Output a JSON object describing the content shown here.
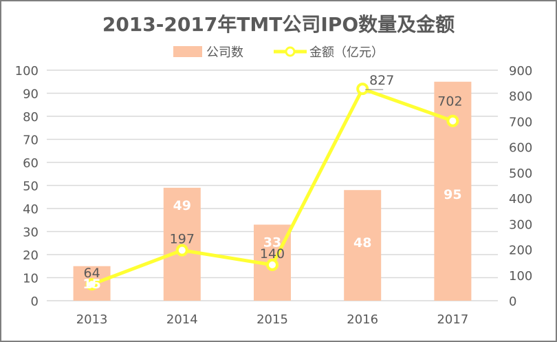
{
  "title": "2013-2017年TMT公司IPO数量及金额",
  "legend": {
    "bar_label": "公司数",
    "line_label": "金额（亿元）"
  },
  "colors": {
    "bar": "#fcc4a4",
    "line": "#ffff33",
    "text": "#595959",
    "grid": "#d9d9d9",
    "border": "#7f7f7f"
  },
  "chart_data": {
    "type": "bar+line",
    "title": "2013-2017年TMT公司IPO数量及金额",
    "categories": [
      "2013",
      "2014",
      "2015",
      "2016",
      "2017"
    ],
    "series": [
      {
        "name": "公司数",
        "type": "bar",
        "axis": "left",
        "values": [
          15,
          49,
          33,
          48,
          95
        ]
      },
      {
        "name": "金额（亿元）",
        "type": "line",
        "axis": "right",
        "values": [
          64,
          197,
          140,
          827,
          702
        ]
      }
    ],
    "left_axis": {
      "min": 0,
      "max": 100,
      "step": 10,
      "ticks": [
        "0",
        "10",
        "20",
        "30",
        "40",
        "50",
        "60",
        "70",
        "80",
        "90",
        "100"
      ]
    },
    "right_axis": {
      "min": 0,
      "max": 900,
      "step": 100,
      "ticks": [
        "0",
        "100",
        "200",
        "300",
        "400",
        "500",
        "600",
        "700",
        "800",
        "900"
      ]
    },
    "grid": true,
    "legend_position": "top"
  }
}
